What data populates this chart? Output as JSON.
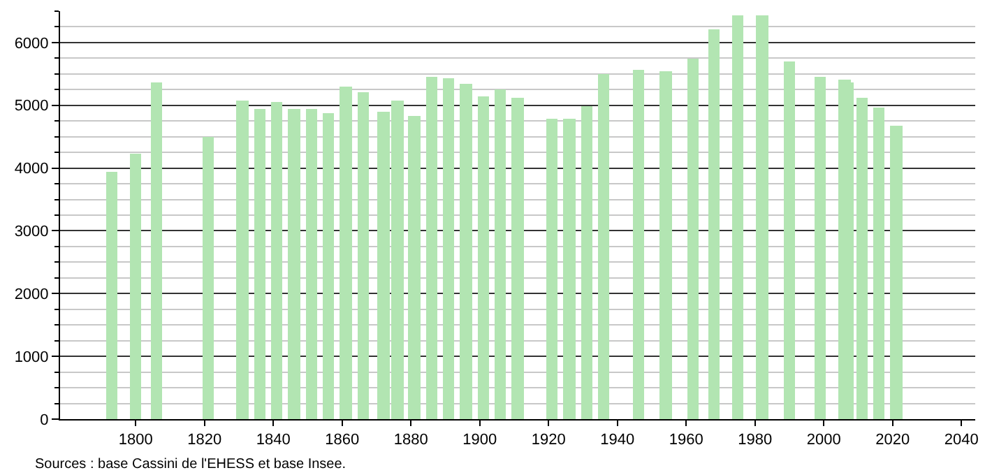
{
  "chart_data": {
    "type": "bar",
    "x": [
      1793,
      1800,
      1806,
      1821,
      1831,
      1836,
      1841,
      1846,
      1851,
      1856,
      1861,
      1866,
      1872,
      1876,
      1881,
      1886,
      1891,
      1896,
      1901,
      1906,
      1911,
      1921,
      1926,
      1931,
      1936,
      1946,
      1954,
      1962,
      1968,
      1975,
      1982,
      1990,
      1999,
      2006,
      2007,
      2011,
      2016,
      2021
    ],
    "values": [
      3930,
      4230,
      5360,
      4490,
      5080,
      4940,
      5050,
      4940,
      4940,
      4880,
      5300,
      5210,
      4900,
      5080,
      4820,
      5450,
      5430,
      5350,
      5150,
      5250,
      5120,
      4780,
      4790,
      4990,
      5490,
      5570,
      5540,
      5750,
      6200,
      6430,
      6430,
      5690,
      5460,
      5410,
      5370,
      5120,
      4970,
      4670
    ],
    "color": "#b2e5b2",
    "xlim": [
      1778,
      2044
    ],
    "xticks": [
      1800,
      1820,
      1840,
      1860,
      1880,
      1900,
      1920,
      1940,
      1960,
      1980,
      2000,
      2020,
      2040
    ],
    "ylim": [
      0,
      6500
    ],
    "yticks": [
      0,
      {
        "value": 250,
        "label": null
      },
      {
        "value": 500,
        "label": null
      },
      {
        "value": 750,
        "label": null
      },
      1000,
      {
        "value": 1250,
        "label": null
      },
      {
        "value": 1500,
        "label": null
      },
      {
        "value": 1750,
        "label": null
      },
      2000,
      {
        "value": 2250,
        "label": null
      },
      {
        "value": 2500,
        "label": null
      },
      {
        "value": 2750,
        "label": null
      },
      3000,
      {
        "value": 3250,
        "label": null
      },
      {
        "value": 3500,
        "label": null
      },
      {
        "value": 3750,
        "label": null
      },
      4000,
      {
        "value": 4250,
        "label": null
      },
      {
        "value": 4500,
        "label": null
      },
      {
        "value": 4750,
        "label": null
      },
      5000,
      {
        "value": 5250,
        "label": null
      },
      {
        "value": 5500,
        "label": null
      },
      {
        "value": 5750,
        "label": null
      },
      6000,
      {
        "value": 6250,
        "label": null
      },
      {
        "value": 6500,
        "label": null
      }
    ],
    "grid": "y",
    "annotations": [
      "Sources : base Cassini de l'EHESS et base Insee."
    ]
  }
}
